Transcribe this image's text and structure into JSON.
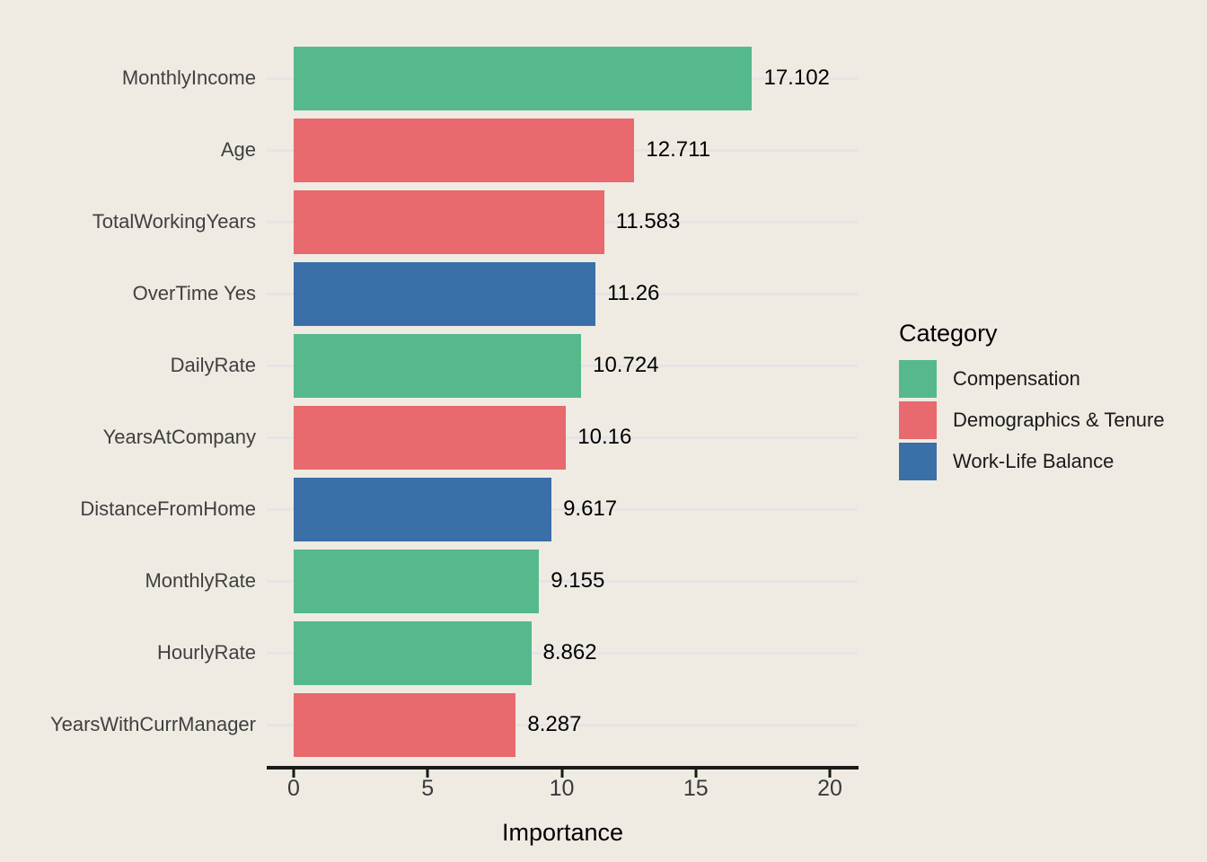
{
  "figure": {
    "background_color": "#EFEBE3",
    "gridline_color": "#E6E4E4",
    "axis_color": "#1A1A1A"
  },
  "chart_data": {
    "type": "bar",
    "orientation": "horizontal",
    "title": "",
    "xlabel": "Importance",
    "ylabel": "",
    "xlim": [
      0,
      21
    ],
    "x_ticks": [
      "0",
      "5",
      "10",
      "15",
      "20"
    ],
    "x_tick_values": [
      0,
      5,
      10,
      15,
      20
    ],
    "grid": "horizontal-major-only",
    "legend_position": "right",
    "legend": {
      "title": "Category",
      "entries": [
        {
          "label": "Compensation",
          "color": "#56B98C"
        },
        {
          "label": "Demographics & Tenure",
          "color": "#E8696E"
        },
        {
          "label": "Work-Life Balance",
          "color": "#3A6FA8"
        }
      ]
    },
    "bars": [
      {
        "feature": "MonthlyIncome",
        "value": 17.102,
        "value_label": "17.102",
        "category": "Compensation"
      },
      {
        "feature": "Age",
        "value": 12.711,
        "value_label": "12.711",
        "category": "Demographics & Tenure"
      },
      {
        "feature": "TotalWorkingYears",
        "value": 11.583,
        "value_label": "11.583",
        "category": "Demographics & Tenure"
      },
      {
        "feature": "OverTime Yes",
        "value": 11.26,
        "value_label": "11.26",
        "category": "Work-Life Balance"
      },
      {
        "feature": "DailyRate",
        "value": 10.724,
        "value_label": "10.724",
        "category": "Compensation"
      },
      {
        "feature": "YearsAtCompany",
        "value": 10.16,
        "value_label": "10.16",
        "category": "Demographics & Tenure"
      },
      {
        "feature": "DistanceFromHome",
        "value": 9.617,
        "value_label": "9.617",
        "category": "Work-Life Balance"
      },
      {
        "feature": "MonthlyRate",
        "value": 9.155,
        "value_label": "9.155",
        "category": "Compensation"
      },
      {
        "feature": "HourlyRate",
        "value": 8.862,
        "value_label": "8.862",
        "category": "Compensation"
      },
      {
        "feature": "YearsWithCurrManager",
        "value": 8.287,
        "value_label": "8.287",
        "category": "Demographics & Tenure"
      }
    ]
  }
}
